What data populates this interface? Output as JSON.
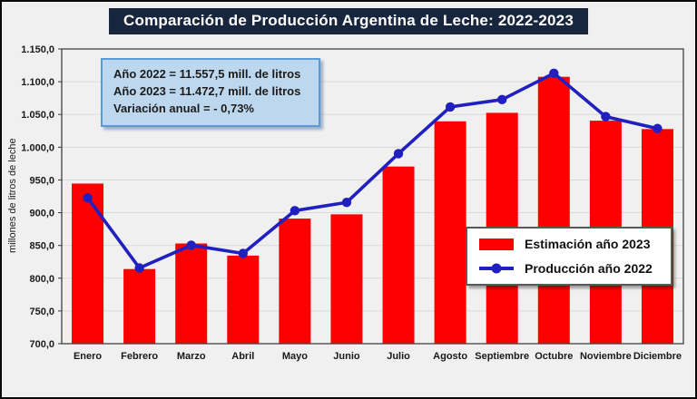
{
  "title": "Comparación de Producción Argentina de Leche: 2022-2023",
  "annotation": {
    "line1": "Año 2022 = 11.557,5 mill. de litros",
    "line2": "Año 2023 = 11.472,7 mill. de litros",
    "line3": "Variación anual = - 0,73%"
  },
  "legend": {
    "items": [
      {
        "label": "Estimación año 2023",
        "swatch": "red-bar"
      },
      {
        "label": "Producción año 2022",
        "swatch": "blue-line-marker"
      }
    ]
  },
  "colors": {
    "background": "#F0F0F0",
    "frame_border": "#0A0A0A",
    "title_bg": "#17263D",
    "title_text": "#FFFFFF",
    "bar": "#FC0000",
    "line": "#2020C0",
    "grid": "#D9D9D9",
    "plot_border": "#404040",
    "axis_text": "#1A1A1A",
    "annotation_bg": "#BDD7EE",
    "annotation_border": "#5B9BD5",
    "legend_bg": "#FFFFFF",
    "legend_border": "#595959"
  },
  "chart_data": {
    "type": "bar",
    "subtype": "bar-plus-line-combo",
    "title": "Comparación de Producción Argentina de Leche: 2022-2023",
    "xlabel": "",
    "ylabel": "millones de litros de leche",
    "ylim": [
      700,
      1150
    ],
    "ytick_step": 50,
    "ytick_labels": [
      "700,0",
      "750,0",
      "800,0",
      "850,0",
      "900,0",
      "950,0",
      "1.000,0",
      "1.050,0",
      "1.100,0",
      "1.150,0"
    ],
    "grid": "horizontal",
    "legend_position": "middle-right",
    "categories": [
      "Enero",
      "Febrero",
      "Marzo",
      "Abril",
      "Mayo",
      "Junio",
      "Julio",
      "Agosto",
      "Septiembre",
      "Octubre",
      "Noviembre",
      "Diciembre"
    ],
    "series": [
      {
        "name": "Estimación año 2023",
        "type": "bar",
        "color": "#FC0000",
        "values": [
          944.5,
          814.0,
          853.0,
          834.5,
          891.0,
          897.5,
          970.5,
          1039.5,
          1052.5,
          1107.5,
          1040.5,
          1027.7
        ],
        "annual_total": "11.472,7 mill. de litros"
      },
      {
        "name": "Producción año 2022",
        "type": "line",
        "color": "#2020C0",
        "marker": "circle",
        "values": [
          922.6,
          815.6,
          850.3,
          837.8,
          903.1,
          915.7,
          990.1,
          1061.5,
          1072.7,
          1112.9,
          1046.7,
          1028.5
        ],
        "annual_total": "11.557,5 mill. de litros"
      }
    ],
    "annual_variation": "- 0,73%"
  }
}
